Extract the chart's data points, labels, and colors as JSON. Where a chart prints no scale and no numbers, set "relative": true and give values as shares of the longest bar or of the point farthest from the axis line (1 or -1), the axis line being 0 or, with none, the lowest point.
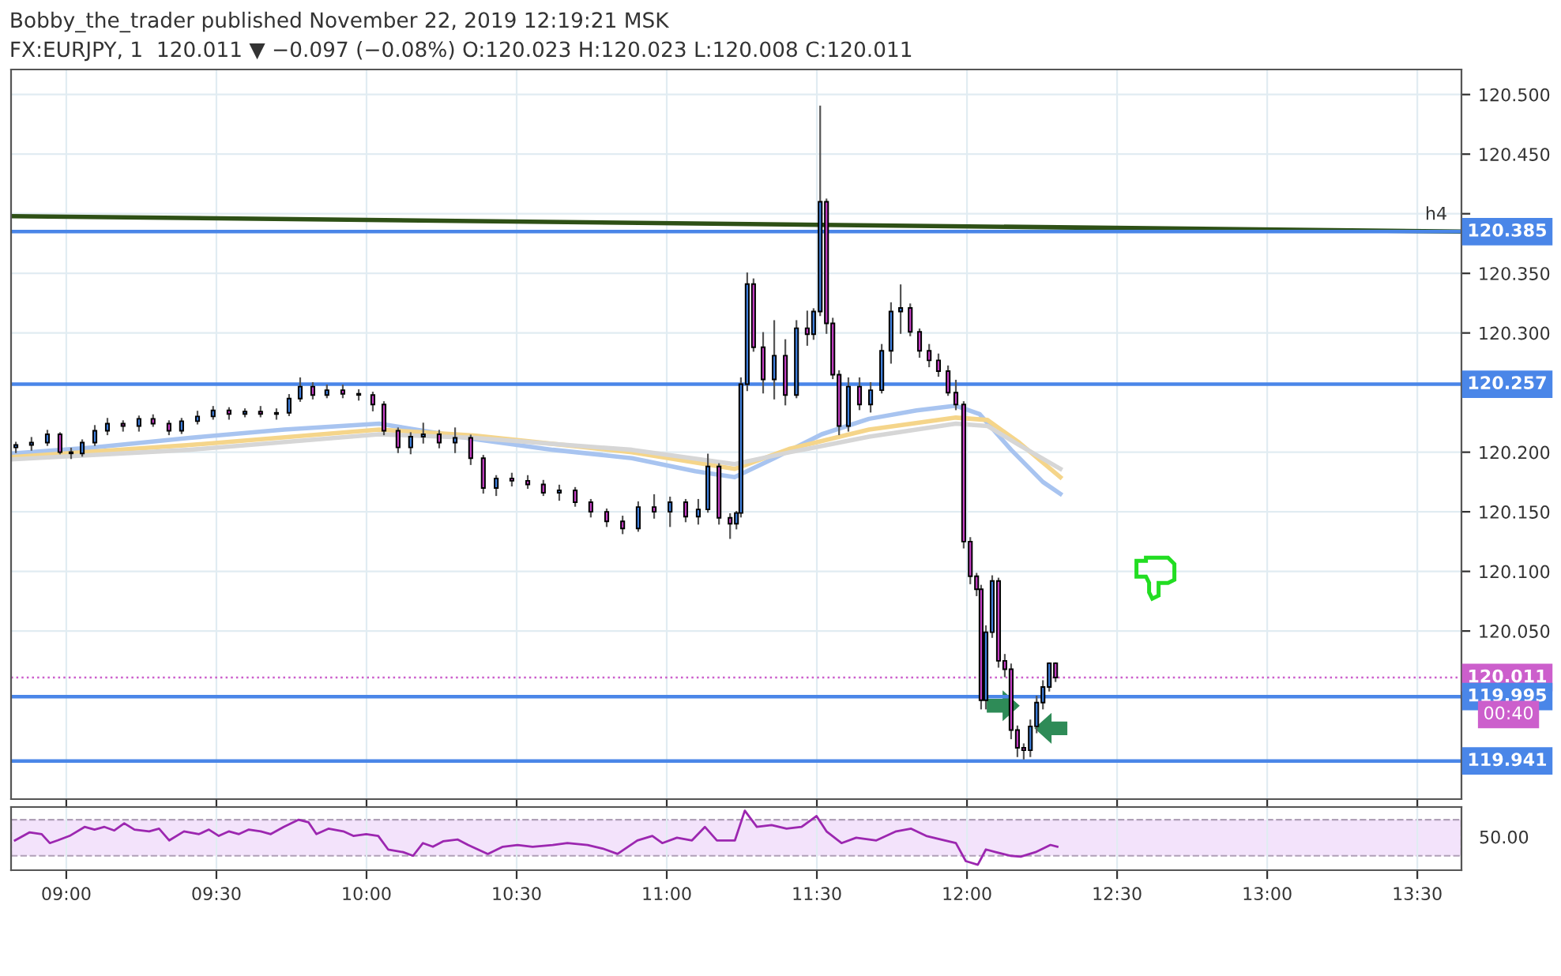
{
  "chart_data": [
    {
      "type": "candlestick",
      "title": "Bobby_the_trader published November 22, 2019 12:19:21 MSK",
      "subtitle": "FX:EURJPY, 1  120.011 ▼ −0.097 (−0.08%) O:120.023 H:120.023 L:120.008 C:120.011",
      "x": [
        8.832,
        8.884,
        8.937,
        8.979,
        9.016,
        9.053,
        9.095,
        9.137,
        9.189,
        9.242,
        9.289,
        9.342,
        9.384,
        9.437,
        9.489,
        9.542,
        9.595,
        9.647,
        9.7,
        9.742,
        9.779,
        9.821,
        9.868,
        9.921,
        9.974,
        10.021,
        10.058,
        10.105,
        10.147,
        10.189,
        10.242,
        10.295,
        10.347,
        10.389,
        10.432,
        10.484,
        10.537,
        10.589,
        10.642,
        10.695,
        10.747,
        10.8,
        10.853,
        10.905,
        10.958,
        11.011,
        11.063,
        11.105,
        11.137,
        11.174,
        11.211,
        11.232,
        11.247,
        11.268,
        11.289,
        11.321,
        11.358,
        11.395,
        11.432,
        11.468,
        11.489,
        11.511,
        11.532,
        11.553,
        11.574,
        11.605,
        11.642,
        11.679,
        11.716,
        11.747,
        11.779,
        11.811,
        11.842,
        11.874,
        11.905,
        11.937,
        11.963,
        11.989,
        12.011,
        12.032,
        12.047,
        12.063,
        12.084,
        12.105,
        12.126,
        12.147,
        12.168,
        12.189,
        12.211,
        12.232,
        12.253,
        12.274,
        12.295
      ],
      "ohlc": [
        [
          120.204,
          120.208,
          120.2,
          120.206
        ],
        [
          120.206,
          120.212,
          120.202,
          120.208
        ],
        [
          120.208,
          120.218,
          120.206,
          120.215
        ],
        [
          120.215,
          120.216,
          120.199,
          120.2
        ],
        [
          120.2,
          120.203,
          120.195,
          120.199
        ],
        [
          120.199,
          120.21,
          120.197,
          120.208
        ],
        [
          120.208,
          120.222,
          120.206,
          120.218
        ],
        [
          120.218,
          120.228,
          120.215,
          120.224
        ],
        [
          120.224,
          120.226,
          120.218,
          120.222
        ],
        [
          120.222,
          120.23,
          120.218,
          120.228
        ],
        [
          120.228,
          120.231,
          120.222,
          120.224
        ],
        [
          120.224,
          120.226,
          120.215,
          120.218
        ],
        [
          120.218,
          120.228,
          120.216,
          120.226
        ],
        [
          120.226,
          120.234,
          120.224,
          120.23
        ],
        [
          120.23,
          120.238,
          120.228,
          120.235
        ],
        [
          120.235,
          120.237,
          120.228,
          120.232
        ],
        [
          120.232,
          120.236,
          120.23,
          120.234
        ],
        [
          120.234,
          120.238,
          120.23,
          120.232
        ],
        [
          120.232,
          120.236,
          120.228,
          120.233
        ],
        [
          120.233,
          120.248,
          120.231,
          120.245
        ],
        [
          120.245,
          120.262,
          120.243,
          120.255
        ],
        [
          120.255,
          120.258,
          120.245,
          120.248
        ],
        [
          120.248,
          120.256,
          120.246,
          120.252
        ],
        [
          120.252,
          120.256,
          120.246,
          120.249
        ],
        [
          120.249,
          120.252,
          120.244,
          120.248
        ],
        [
          120.248,
          120.25,
          120.235,
          120.24
        ],
        [
          120.24,
          120.242,
          120.215,
          120.218
        ],
        [
          120.218,
          120.22,
          120.2,
          120.204
        ],
        [
          120.204,
          120.216,
          120.199,
          120.213
        ],
        [
          120.213,
          120.224,
          120.208,
          120.215
        ],
        [
          120.215,
          120.218,
          120.204,
          120.208
        ],
        [
          120.208,
          120.22,
          120.2,
          120.212
        ],
        [
          120.212,
          120.214,
          120.19,
          120.195
        ],
        [
          120.195,
          120.197,
          120.166,
          120.17
        ],
        [
          120.17,
          120.18,
          120.164,
          120.178
        ],
        [
          120.178,
          120.182,
          120.172,
          120.176
        ],
        [
          120.176,
          120.18,
          120.17,
          120.173
        ],
        [
          120.173,
          120.176,
          120.164,
          120.166
        ],
        [
          120.166,
          120.172,
          120.16,
          120.168
        ],
        [
          120.168,
          120.17,
          120.155,
          120.158
        ],
        [
          120.158,
          120.16,
          120.146,
          120.15
        ],
        [
          120.15,
          120.152,
          120.138,
          120.142
        ],
        [
          120.142,
          120.146,
          120.132,
          120.136
        ],
        [
          120.136,
          120.158,
          120.134,
          120.154
        ],
        [
          120.154,
          120.164,
          120.145,
          120.15
        ],
        [
          120.15,
          120.162,
          120.138,
          120.158
        ],
        [
          120.158,
          120.16,
          120.142,
          120.146
        ],
        [
          120.146,
          120.16,
          120.14,
          120.152
        ],
        [
          120.152,
          120.198,
          120.15,
          120.188
        ],
        [
          120.188,
          120.19,
          120.14,
          120.145
        ],
        [
          120.145,
          120.148,
          120.128,
          120.14
        ],
        [
          120.14,
          120.15,
          120.136,
          120.149
        ],
        [
          120.149,
          120.262,
          120.146,
          120.257
        ],
        [
          120.257,
          120.35,
          120.252,
          120.341
        ],
        [
          120.341,
          120.345,
          120.285,
          120.288
        ],
        [
          120.288,
          120.3,
          120.25,
          120.261
        ],
        [
          120.261,
          120.31,
          120.245,
          120.281
        ],
        [
          120.281,
          120.294,
          120.24,
          120.248
        ],
        [
          120.248,
          120.31,
          120.246,
          120.304
        ],
        [
          120.304,
          120.318,
          120.29,
          120.299
        ],
        [
          120.299,
          120.32,
          120.295,
          120.318
        ],
        [
          120.318,
          120.49,
          120.315,
          120.41
        ],
        [
          120.41,
          120.412,
          120.3,
          120.308
        ],
        [
          120.308,
          120.312,
          120.262,
          120.265
        ],
        [
          120.265,
          120.268,
          120.215,
          120.222
        ],
        [
          120.222,
          120.262,
          120.218,
          120.255
        ],
        [
          120.255,
          120.262,
          120.236,
          120.24
        ],
        [
          120.24,
          120.258,
          120.234,
          120.252
        ],
        [
          120.252,
          120.29,
          120.25,
          120.285
        ],
        [
          120.285,
          120.325,
          120.275,
          120.318
        ],
        [
          120.318,
          120.34,
          120.3,
          120.321
        ],
        [
          120.321,
          120.324,
          120.298,
          120.301
        ],
        [
          120.301,
          120.303,
          120.28,
          120.285
        ],
        [
          120.285,
          120.29,
          120.272,
          120.277
        ],
        [
          120.277,
          120.282,
          120.264,
          120.268
        ],
        [
          120.268,
          120.272,
          120.248,
          120.25
        ],
        [
          120.25,
          120.26,
          120.236,
          120.24
        ],
        [
          120.24,
          120.242,
          120.12,
          120.125
        ],
        [
          120.125,
          120.128,
          120.09,
          120.096
        ],
        [
          120.096,
          120.098,
          120.08,
          120.085
        ],
        [
          120.085,
          120.088,
          119.985,
          119.992
        ],
        [
          119.992,
          120.054,
          119.985,
          120.049
        ],
        [
          120.049,
          120.096,
          120.045,
          120.092
        ],
        [
          120.092,
          120.094,
          120.02,
          120.025
        ],
        [
          120.025,
          120.03,
          120.012,
          120.018
        ],
        [
          120.018,
          120.022,
          119.96,
          119.967
        ],
        [
          119.967,
          119.97,
          119.945,
          119.952
        ],
        [
          119.952,
          119.955,
          119.943,
          119.95
        ],
        [
          119.95,
          119.975,
          119.945,
          119.97
        ],
        [
          119.97,
          119.995,
          119.965,
          119.99
        ],
        [
          119.99,
          120.008,
          119.985,
          120.003
        ],
        [
          120.003,
          120.023,
          120.0,
          120.023
        ],
        [
          120.023,
          120.023,
          120.008,
          120.011
        ]
      ],
      "colors": [
        "#3f7fdc",
        "#3f7fdc",
        "#3f7fdc",
        "#c33fc3",
        "#c33fc3",
        "#3f7fdc",
        "#3f7fdc",
        "#3f7fdc",
        "#c33fc3",
        "#3f7fdc",
        "#c33fc3",
        "#c33fc3",
        "#3f7fdc",
        "#3f7fdc",
        "#3f7fdc",
        "#c33fc3",
        "#3f7fdc",
        "#c33fc3",
        "#3f7fdc",
        "#3f7fdc",
        "#3f7fdc",
        "#c33fc3",
        "#3f7fdc",
        "#c33fc3",
        "#c33fc3",
        "#c33fc3",
        "#c33fc3",
        "#c33fc3",
        "#3f7fdc",
        "#3f7fdc",
        "#c33fc3",
        "#3f7fdc",
        "#c33fc3",
        "#c33fc3",
        "#3f7fdc",
        "#c33fc3",
        "#c33fc3",
        "#c33fc3",
        "#3f7fdc",
        "#c33fc3",
        "#c33fc3",
        "#c33fc3",
        "#c33fc3",
        "#3f7fdc",
        "#c33fc3",
        "#3f7fdc",
        "#c33fc3",
        "#3f7fdc",
        "#3f7fdc",
        "#c33fc3",
        "#c33fc3",
        "#3f7fdc",
        "#3f7fdc",
        "#3f7fdc",
        "#c33fc3",
        "#c33fc3",
        "#3f7fdc",
        "#c33fc3",
        "#3f7fdc",
        "#c33fc3",
        "#3f7fdc",
        "#3f7fdc",
        "#c33fc3",
        "#c33fc3",
        "#c33fc3",
        "#3f7fdc",
        "#c33fc3",
        "#3f7fdc",
        "#3f7fdc",
        "#3f7fdc",
        "#3f7fdc",
        "#c33fc3",
        "#c33fc3",
        "#c33fc3",
        "#c33fc3",
        "#c33fc3",
        "#c33fc3",
        "#c33fc3",
        "#c33fc3",
        "#c33fc3",
        "#c33fc3",
        "#3f7fdc",
        "#3f7fdc",
        "#c33fc3",
        "#c33fc3",
        "#c33fc3",
        "#c33fc3",
        "#c33fc3",
        "#3f7fdc",
        "#3f7fdc",
        "#3f7fdc",
        "#3f7fdc",
        "#c33fc3"
      ],
      "series": [
        {
          "type": "line",
          "color": "#a8c4f0",
          "x": [
            8.821,
            9.095,
            9.411,
            9.726,
            10.042,
            10.358,
            10.621,
            10.884,
            11.095,
            11.226,
            11.358,
            11.516,
            11.674,
            11.832,
            11.963,
            12.042,
            12.147,
            12.253,
            12.311
          ],
          "values": [
            120.199,
            120.204,
            120.212,
            120.219,
            120.224,
            120.211,
            120.202,
            120.195,
            120.184,
            120.179,
            120.195,
            120.215,
            120.228,
            120.235,
            120.239,
            120.232,
            120.202,
            120.175,
            120.165
          ]
        },
        {
          "type": "line",
          "color": "#f5d58a",
          "x": [
            8.821,
            9.411,
            10.042,
            10.358,
            10.884,
            11.226,
            11.411,
            11.674,
            11.963,
            12.068,
            12.174,
            12.311
          ],
          "values": [
            120.196,
            120.206,
            120.219,
            120.214,
            120.2,
            120.186,
            120.203,
            120.219,
            120.229,
            120.227,
            120.208,
            120.179
          ]
        },
        {
          "type": "line",
          "color": "#d6d6d6",
          "x": [
            8.821,
            9.411,
            10.042,
            10.358,
            10.884,
            11.226,
            11.411,
            11.674,
            11.963,
            12.068,
            12.174,
            12.311
          ],
          "values": [
            120.194,
            120.202,
            120.215,
            120.212,
            120.202,
            120.19,
            120.2,
            120.213,
            120.224,
            120.222,
            120.206,
            120.186
          ]
        },
        {
          "type": "line",
          "color": "#2e5016",
          "x": [
            8.816,
            13.647
          ],
          "values": [
            120.398,
            120.385
          ]
        }
      ],
      "xlim": [
        8.816,
        13.647
      ],
      "ylim": [
        119.909,
        120.521
      ],
      "xticks": [
        {
          "value": 9,
          "label": null
        },
        {
          "value": 9.5,
          "label": null
        },
        {
          "value": 10,
          "label": null
        },
        {
          "value": 10.5,
          "label": null
        },
        {
          "value": 11,
          "label": null
        },
        {
          "value": 11.5,
          "label": null
        },
        {
          "value": 12,
          "label": null
        },
        {
          "value": 12.5,
          "label": null
        },
        {
          "value": 13,
          "label": null
        },
        {
          "value": 13.5,
          "label": null
        }
      ],
      "yticks": [
        {
          "value": 120.05,
          "label": "120.050"
        },
        {
          "value": 120.1,
          "label": "120.100"
        },
        {
          "value": 120.15,
          "label": "120.150"
        },
        {
          "value": 120.2,
          "label": "120.200"
        },
        {
          "value": 120.3,
          "label": "120.300"
        },
        {
          "value": 120.35,
          "label": "120.350"
        },
        {
          "value": 120.4,
          "label": null
        },
        {
          "value": 120.45,
          "label": "120.450"
        },
        {
          "value": 120.5,
          "label": "120.500"
        }
      ],
      "tick_labels": "y",
      "grid": true,
      "ref_lines": [
        {
          "axis": "y",
          "value": 120.385,
          "label": "120.385",
          "color": "#4a86e8"
        },
        {
          "axis": "y",
          "value": 120.257,
          "label": "120.257",
          "color": "#4a86e8"
        },
        {
          "axis": "y",
          "value": 120.011,
          "label": "120.011",
          "color": "#cc5fcc",
          "line_style": "dotted"
        },
        {
          "axis": "y",
          "value": 119.995,
          "label": "119.995",
          "color": "#4a86e8"
        },
        {
          "axis": "y",
          "value": 119.941,
          "label": "119.941",
          "color": "#4a86e8"
        }
      ],
      "annotations": [
        {
          "text": "h4",
          "x": 13.6,
          "y": 120.392
        },
        "00:40"
      ]
    },
    {
      "type": "line",
      "series": [
        {
          "color": "#9c27b0",
          "x": [
            8.829,
            8.878,
            8.918,
            8.945,
            8.971,
            9.011,
            9.061,
            9.094,
            9.127,
            9.16,
            9.193,
            9.227,
            9.276,
            9.309,
            9.343,
            9.392,
            9.442,
            9.475,
            9.508,
            9.542,
            9.575,
            9.608,
            9.648,
            9.681,
            9.724,
            9.774,
            9.807,
            9.833,
            9.873,
            9.923,
            9.956,
            9.999,
            10.039,
            10.072,
            10.122,
            10.155,
            10.188,
            10.221,
            10.255,
            10.304,
            10.338,
            10.404,
            10.454,
            10.503,
            10.553,
            10.62,
            10.669,
            10.736,
            10.786,
            10.836,
            10.902,
            10.952,
            10.985,
            11.034,
            11.084,
            11.127,
            11.167,
            11.227,
            11.26,
            11.3,
            11.349,
            11.399,
            11.449,
            11.499,
            11.532,
            11.582,
            11.631,
            11.698,
            11.764,
            11.814,
            11.864,
            11.913,
            11.963,
            11.996,
            12.036,
            12.063,
            12.096,
            12.145,
            12.179,
            12.228,
            12.278,
            12.301
          ],
          "values": [
            0.5,
            0.636,
            0.606,
            0.455,
            0.5,
            0.576,
            0.727,
            0.682,
            0.727,
            0.667,
            0.788,
            0.682,
            0.652,
            0.697,
            0.5,
            0.652,
            0.606,
            0.682,
            0.576,
            0.652,
            0.606,
            0.682,
            0.652,
            0.606,
            0.727,
            0.848,
            0.803,
            0.606,
            0.697,
            0.652,
            0.576,
            0.606,
            0.576,
            0.348,
            0.303,
            0.242,
            0.455,
            0.394,
            0.485,
            0.515,
            0.424,
            0.273,
            0.394,
            0.424,
            0.394,
            0.424,
            0.455,
            0.424,
            0.364,
            0.273,
            0.5,
            0.576,
            0.455,
            0.545,
            0.5,
            0.727,
            0.5,
            0.5,
            1,
            0.727,
            0.758,
            0.697,
            0.727,
            0.909,
            0.652,
            0.455,
            0.545,
            0.5,
            0.652,
            0.697,
            0.576,
            0.515,
            0.455,
            0.152,
            0.091,
            0.348,
            0.303,
            0.242,
            0.227,
            0.303,
            0.424,
            0.394
          ]
        }
      ],
      "relative": true,
      "xlim": [
        8.816,
        13.647
      ],
      "xticks": [
        {
          "value": 9,
          "label": "09:00"
        },
        {
          "value": 9.5,
          "label": "09:30"
        },
        {
          "value": 10,
          "label": "10:00"
        },
        {
          "value": 10.5,
          "label": "10:30"
        },
        {
          "value": 11,
          "label": "11:00"
        },
        {
          "value": 11.5,
          "label": "11:30"
        },
        {
          "value": 12,
          "label": "12:00"
        },
        {
          "value": 12.5,
          "label": "12:30"
        },
        {
          "value": 13,
          "label": "13:00"
        },
        {
          "value": 13.5,
          "label": "13:30"
        }
      ],
      "annotations": [
        "50.00"
      ],
      "bands": [
        {
          "axis": "y",
          "from": 0.242,
          "to": 0.848,
          "color": "#f3e3fb"
        }
      ],
      "grid": true
    }
  ]
}
